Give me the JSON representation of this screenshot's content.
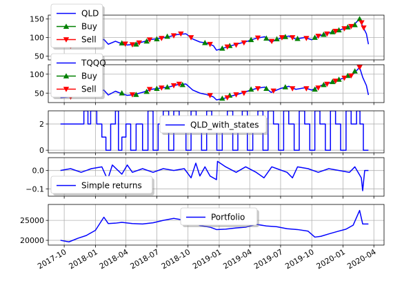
{
  "chart_data": [
    {
      "id": "qld",
      "type": "line",
      "ylim": [
        40,
        160
      ],
      "yticks": [
        50,
        100,
        150
      ],
      "grid": true,
      "legend": {
        "placement": "upper-left",
        "entries": [
          {
            "label": "QLD",
            "kind": "line",
            "color": "#0000ff"
          },
          {
            "label": "Buy",
            "kind": "marker-up",
            "color": "#008000"
          },
          {
            "label": "Sell",
            "kind": "marker-down",
            "color": "#ff0000"
          }
        ]
      },
      "series": [
        {
          "name": "QLD",
          "color": "#0000ff",
          "x": [
            "2017-09-20",
            "2017-10-15",
            "2017-11-10",
            "2017-12-05",
            "2018-01-01",
            "2018-01-26",
            "2018-02-08",
            "2018-03-01",
            "2018-03-15",
            "2018-04-05",
            "2018-04-25",
            "2018-05-20",
            "2018-06-15",
            "2018-07-10",
            "2018-08-05",
            "2018-08-30",
            "2018-09-25",
            "2018-10-15",
            "2018-11-05",
            "2018-11-25",
            "2018-12-15",
            "2018-12-24",
            "2019-01-15",
            "2019-02-05",
            "2019-03-01",
            "2019-03-25",
            "2019-04-20",
            "2019-05-15",
            "2019-06-03",
            "2019-06-30",
            "2019-07-25",
            "2019-08-15",
            "2019-09-10",
            "2019-10-01",
            "2019-10-28",
            "2019-11-20",
            "2019-12-15",
            "2020-01-10",
            "2020-01-31",
            "2020-02-19",
            "2020-02-28",
            "2020-03-10",
            "2020-03-16"
          ],
          "values": [
            75,
            77,
            80,
            82,
            88,
            95,
            82,
            90,
            85,
            80,
            82,
            88,
            95,
            98,
            102,
            108,
            110,
            96,
            88,
            85,
            78,
            66,
            72,
            78,
            84,
            90,
            98,
            102,
            88,
            98,
            104,
            96,
            100,
            94,
            106,
            112,
            118,
            126,
            132,
            150,
            130,
            110,
            82
          ]
        }
      ],
      "buy": {
        "x": [
          "2017-12-10",
          "2018-01-05",
          "2018-03-20",
          "2018-05-01",
          "2018-06-01",
          "2018-07-01",
          "2018-08-01",
          "2018-11-20",
          "2019-01-10",
          "2019-02-01",
          "2019-04-05",
          "2019-05-20",
          "2019-06-20",
          "2019-07-15",
          "2019-08-20",
          "2019-10-10",
          "2019-11-05",
          "2019-12-01",
          "2019-12-20",
          "2020-01-15",
          "2020-02-05",
          "2020-02-19"
        ],
        "values": [
          84,
          90,
          85,
          82,
          90,
          96,
          103,
          86,
          71,
          78,
          94,
          98,
          96,
          102,
          97,
          100,
          108,
          115,
          120,
          128,
          134,
          150
        ]
      },
      "sell": {
        "x": [
          "2017-10-20",
          "2017-11-20",
          "2018-01-15",
          "2018-03-30",
          "2018-04-20",
          "2018-05-10",
          "2018-06-10",
          "2018-07-15",
          "2018-08-20",
          "2018-09-10",
          "2018-10-10",
          "2018-12-05",
          "2019-01-25",
          "2019-02-20",
          "2019-03-15",
          "2019-04-25",
          "2019-06-05",
          "2019-07-05",
          "2019-08-05",
          "2019-09-15",
          "2019-10-20",
          "2019-11-15",
          "2019-12-10",
          "2020-01-05",
          "2020-01-25",
          "2020-02-25",
          "2020-03-02"
        ],
        "values": [
          77,
          80,
          92,
          83,
          81,
          86,
          94,
          98,
          105,
          110,
          100,
          82,
          75,
          80,
          86,
          99,
          90,
          100,
          100,
          98,
          104,
          110,
          117,
          124,
          130,
          140,
          126
        ]
      }
    },
    {
      "id": "tqqq",
      "type": "line",
      "ylim": [
        25,
        125
      ],
      "yticks": [
        50,
        100
      ],
      "grid": true,
      "legend": {
        "placement": "upper-left",
        "entries": [
          {
            "label": "TQQQ",
            "kind": "line",
            "color": "#0000ff"
          },
          {
            "label": "Buy",
            "kind": "marker-up",
            "color": "#008000"
          },
          {
            "label": "Sell",
            "kind": "marker-down",
            "color": "#ff0000"
          }
        ]
      },
      "series": [
        {
          "name": "TQQQ",
          "color": "#0000ff",
          "x": [
            "2017-09-20",
            "2017-10-15",
            "2017-11-10",
            "2017-12-05",
            "2018-01-01",
            "2018-01-26",
            "2018-02-08",
            "2018-03-01",
            "2018-03-15",
            "2018-04-05",
            "2018-04-25",
            "2018-05-20",
            "2018-06-15",
            "2018-07-10",
            "2018-08-05",
            "2018-08-30",
            "2018-09-25",
            "2018-10-15",
            "2018-11-05",
            "2018-11-25",
            "2018-12-15",
            "2018-12-24",
            "2019-01-15",
            "2019-02-05",
            "2019-03-01",
            "2019-03-25",
            "2019-04-20",
            "2019-05-15",
            "2019-06-03",
            "2019-06-30",
            "2019-07-25",
            "2019-08-15",
            "2019-09-10",
            "2019-10-01",
            "2019-10-28",
            "2019-11-20",
            "2019-12-15",
            "2020-01-10",
            "2020-01-31",
            "2020-02-19",
            "2020-02-28",
            "2020-03-10",
            "2020-03-16"
          ],
          "values": [
            38,
            40,
            42,
            44,
            50,
            58,
            45,
            55,
            50,
            44,
            46,
            52,
            60,
            63,
            66,
            72,
            74,
            58,
            50,
            46,
            40,
            32,
            36,
            42,
            48,
            55,
            62,
            66,
            52,
            62,
            68,
            60,
            64,
            58,
            70,
            76,
            84,
            92,
            100,
            118,
            92,
            70,
            45
          ]
        }
      ],
      "buy": {
        "x": [
          "2018-03-20",
          "2018-05-01",
          "2018-06-01",
          "2018-07-01",
          "2018-08-01",
          "2018-09-15",
          "2019-01-10",
          "2019-02-01",
          "2019-04-05",
          "2019-05-20",
          "2019-07-15",
          "2019-10-10",
          "2019-11-05",
          "2019-12-01",
          "2019-12-20",
          "2020-01-15",
          "2020-02-05"
        ],
        "values": [
          50,
          46,
          54,
          62,
          66,
          72,
          36,
          44,
          60,
          62,
          66,
          60,
          72,
          80,
          86,
          96,
          108
        ]
      },
      "sell": {
        "x": [
          "2017-10-20",
          "2018-01-15",
          "2018-04-20",
          "2018-06-10",
          "2018-07-15",
          "2018-08-20",
          "2018-09-05",
          "2018-12-05",
          "2019-01-25",
          "2019-02-20",
          "2019-03-15",
          "2019-04-25",
          "2019-06-10",
          "2019-08-05",
          "2019-09-15",
          "2019-10-20",
          "2019-11-15",
          "2019-12-10",
          "2020-01-05",
          "2020-01-25",
          "2020-02-19"
        ],
        "values": [
          40,
          52,
          46,
          60,
          64,
          70,
          74,
          44,
          38,
          46,
          50,
          62,
          56,
          62,
          62,
          64,
          74,
          82,
          90,
          96,
          118
        ]
      }
    },
    {
      "id": "states",
      "type": "line",
      "ylim": [
        -0.2,
        3.0
      ],
      "yticks": [
        0,
        2
      ],
      "grid": true,
      "legend": {
        "placement": "right",
        "entries": [
          {
            "label": "QLD_with_states",
            "kind": "line",
            "color": "#0000ff"
          }
        ]
      },
      "series": [
        {
          "name": "QLD_with_states",
          "color": "#0000ff",
          "x": [
            "2017-09-20",
            "2017-11-20",
            "2017-11-28",
            "2017-12-10",
            "2017-12-18",
            "2018-01-05",
            "2018-01-20",
            "2018-02-01",
            "2018-02-15",
            "2018-03-01",
            "2018-03-10",
            "2018-03-20",
            "2018-04-01",
            "2018-04-15",
            "2018-05-01",
            "2018-05-20",
            "2018-06-05",
            "2018-06-20",
            "2018-07-05",
            "2018-07-20",
            "2018-08-05",
            "2018-08-20",
            "2018-09-05",
            "2018-09-25",
            "2018-10-10",
            "2018-10-25",
            "2018-11-10",
            "2018-11-25",
            "2018-12-10",
            "2018-12-25",
            "2019-01-10",
            "2019-01-25",
            "2019-02-10",
            "2019-02-25",
            "2019-03-10",
            "2019-03-25",
            "2019-04-10",
            "2019-04-25",
            "2019-05-10",
            "2019-05-25",
            "2019-06-10",
            "2019-06-25",
            "2019-07-10",
            "2019-07-25",
            "2019-08-10",
            "2019-08-25",
            "2019-09-10",
            "2019-09-25",
            "2019-10-10",
            "2019-10-25",
            "2019-11-10",
            "2019-11-25",
            "2019-12-10",
            "2019-12-25",
            "2020-01-10",
            "2020-01-25",
            "2020-02-10",
            "2020-02-20",
            "2020-03-01",
            "2020-03-16"
          ],
          "values": [
            2,
            2,
            3,
            2,
            3,
            2,
            1,
            0,
            2,
            3,
            0,
            1,
            2,
            0,
            2,
            0,
            3,
            0,
            2,
            3,
            0,
            3,
            2,
            0,
            3,
            2,
            0,
            3,
            2,
            0,
            2,
            3,
            0,
            2,
            3,
            0,
            2,
            3,
            0,
            3,
            2,
            0,
            3,
            2,
            0,
            3,
            2,
            0,
            3,
            2,
            0,
            3,
            2,
            0,
            3,
            2,
            3,
            2,
            0,
            0
          ]
        }
      ]
    },
    {
      "id": "returns",
      "type": "line",
      "ylim": [
        -0.14,
        0.07
      ],
      "yticks": [
        0.0,
        -0.1
      ],
      "ytick_labels": [
        "0.0",
        "−0.1"
      ],
      "grid": true,
      "legend": {
        "placement": "lower-left",
        "entries": [
          {
            "label": "Simple returns",
            "kind": "line",
            "color": "#0000ff"
          }
        ]
      },
      "series": [
        {
          "name": "Simple returns",
          "color": "#0000ff",
          "x": [
            "2017-09-20",
            "2017-10-20",
            "2017-11-20",
            "2017-12-20",
            "2018-01-20",
            "2018-02-06",
            "2018-02-20",
            "2018-03-20",
            "2018-04-05",
            "2018-04-20",
            "2018-05-20",
            "2018-06-20",
            "2018-07-20",
            "2018-08-20",
            "2018-09-20",
            "2018-10-10",
            "2018-10-24",
            "2018-11-05",
            "2018-11-20",
            "2018-12-05",
            "2018-12-24",
            "2018-12-27",
            "2019-01-20",
            "2019-02-20",
            "2019-03-20",
            "2019-04-20",
            "2019-05-13",
            "2019-06-05",
            "2019-06-20",
            "2019-07-20",
            "2019-08-05",
            "2019-08-20",
            "2019-09-20",
            "2019-10-20",
            "2019-11-20",
            "2019-12-20",
            "2020-01-20",
            "2020-02-05",
            "2020-02-24",
            "2020-02-28",
            "2020-03-05",
            "2020-03-16"
          ],
          "values": [
            0.0,
            0.01,
            -0.01,
            0.01,
            0.02,
            -0.05,
            0.03,
            -0.02,
            0.03,
            -0.01,
            0.01,
            -0.01,
            0.01,
            0.0,
            0.01,
            -0.04,
            0.04,
            -0.03,
            0.02,
            -0.03,
            -0.05,
            0.05,
            0.02,
            -0.01,
            0.02,
            -0.01,
            -0.04,
            0.02,
            0.01,
            -0.01,
            -0.04,
            0.02,
            0.01,
            -0.01,
            0.01,
            0.0,
            -0.01,
            0.02,
            -0.04,
            -0.11,
            0.0,
            0.0
          ]
        }
      ]
    },
    {
      "id": "portfolio",
      "type": "line",
      "ylim": [
        18800,
        29000
      ],
      "yticks": [
        20000,
        25000
      ],
      "grid": true,
      "legend": {
        "placement": "upper-center",
        "entries": [
          {
            "label": "Portfolio",
            "kind": "line",
            "color": "#0000ff"
          }
        ]
      },
      "series": [
        {
          "name": "Portfolio",
          "color": "#0000ff",
          "x": [
            "2017-09-20",
            "2017-10-15",
            "2017-11-10",
            "2017-12-05",
            "2018-01-01",
            "2018-01-26",
            "2018-02-08",
            "2018-03-01",
            "2018-03-20",
            "2018-04-20",
            "2018-05-20",
            "2018-06-20",
            "2018-07-20",
            "2018-08-20",
            "2018-09-10",
            "2018-10-10",
            "2018-11-05",
            "2018-12-05",
            "2018-12-24",
            "2019-01-20",
            "2019-02-20",
            "2019-03-20",
            "2019-04-20",
            "2019-05-20",
            "2019-06-20",
            "2019-07-20",
            "2019-08-20",
            "2019-09-20",
            "2019-10-10",
            "2019-10-28",
            "2019-11-20",
            "2019-12-15",
            "2020-01-10",
            "2020-01-31",
            "2020-02-19",
            "2020-02-28",
            "2020-03-16"
          ],
          "values": [
            20000,
            19600,
            20500,
            21200,
            22500,
            25800,
            24200,
            24300,
            24500,
            24200,
            24100,
            24400,
            25000,
            25500,
            25200,
            25100,
            23700,
            23300,
            22700,
            22800,
            23100,
            23300,
            24000,
            23600,
            23400,
            22900,
            22700,
            22300,
            20800,
            21000,
            21600,
            22200,
            22800,
            23800,
            27500,
            24100,
            24100
          ]
        }
      ]
    }
  ],
  "x_axis": {
    "ticks": [
      "2017-10-01",
      "2018-01-01",
      "2018-04-01",
      "2018-07-01",
      "2018-10-01",
      "2019-01-01",
      "2019-04-01",
      "2019-07-01",
      "2019-10-01",
      "2020-01-01",
      "2020-04-01"
    ],
    "tick_labels": [
      "2017-10",
      "2018-01",
      "2018-04",
      "2018-07",
      "2018-10",
      "2019-01",
      "2019-04",
      "2019-07",
      "2019-10",
      "2020-01",
      "2020-04"
    ],
    "xlim": [
      "2017-08-15",
      "2020-05-01"
    ]
  }
}
